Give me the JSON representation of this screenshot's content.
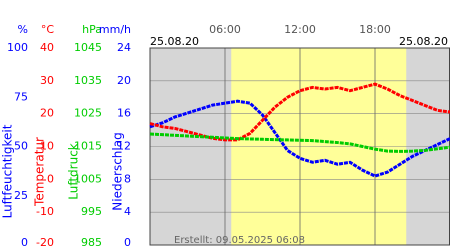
{
  "chart_data": {
    "type": "line",
    "start_date": "25.08.20",
    "end_date": "25.08.20",
    "footer": "Erstellt: 09.05.2025 06:08",
    "xlim": [
      0,
      24
    ],
    "xticks": [
      {
        "value": 6,
        "label": "06:00"
      },
      {
        "value": 12,
        "label": "12:00"
      },
      {
        "value": 18,
        "label": "18:00"
      }
    ],
    "daylight": [
      6.5,
      20.5
    ],
    "axes": [
      {
        "unit": "%",
        "label": "Luftfeuchtigkeit",
        "color": "#0000ff",
        "lim": [
          0,
          100
        ],
        "ticks": [
          0,
          25,
          50,
          75,
          100
        ],
        "grid": false
      },
      {
        "unit": "°C",
        "label": "Temperatur",
        "color": "#ff0000",
        "lim": [
          -20,
          40
        ],
        "ticks": [
          -20,
          -10,
          0,
          10,
          20,
          30,
          40
        ],
        "grid": false
      },
      {
        "unit": "hPa",
        "label": "Luftdruck",
        "color": "#00cc00",
        "lim": [
          985,
          1045
        ],
        "ticks": [
          985,
          995,
          1005,
          1015,
          1025,
          1035,
          1045
        ],
        "grid": false
      },
      {
        "unit": "mm/h",
        "label": "Niederschlag",
        "color": "#0000ff",
        "lim": [
          0,
          24
        ],
        "ticks": [
          0,
          4,
          8,
          12,
          16,
          20,
          24
        ],
        "grid": true
      }
    ],
    "x": [
      0,
      1,
      2,
      3,
      4,
      5,
      6,
      7,
      8,
      9,
      10,
      11,
      12,
      13,
      14,
      15,
      16,
      17,
      18,
      19,
      20,
      21,
      22,
      23,
      24
    ],
    "series": [
      {
        "name": "Luftfeuchtigkeit",
        "axis": 0,
        "color": "#0000ff",
        "values": [
          60,
          62,
          65,
          67,
          69,
          71,
          72,
          73,
          72,
          66,
          57,
          48,
          44,
          42,
          43,
          41,
          42,
          38,
          35,
          37,
          41,
          45,
          48,
          51,
          54
        ]
      },
      {
        "name": "Temperatur",
        "axis": 1,
        "color": "#ff0000",
        "values": [
          17,
          16,
          15.5,
          14.5,
          13.5,
          12.5,
          12,
          12,
          14,
          18,
          22,
          25,
          27,
          28,
          27.5,
          28,
          27,
          28,
          29,
          27.5,
          25.5,
          24,
          22.5,
          21,
          20.5
        ]
      },
      {
        "name": "Luftdruck",
        "axis": 2,
        "color": "#00cc00",
        "values": [
          1018.8,
          1018.6,
          1018.4,
          1018.2,
          1018,
          1017.8,
          1017.6,
          1017.4,
          1017.3,
          1017.2,
          1017.1,
          1017,
          1016.9,
          1016.8,
          1016.5,
          1016.2,
          1015.8,
          1015,
          1014.2,
          1013.6,
          1013.5,
          1013.6,
          1013.8,
          1014.3,
          1014.8
        ]
      }
    ]
  }
}
